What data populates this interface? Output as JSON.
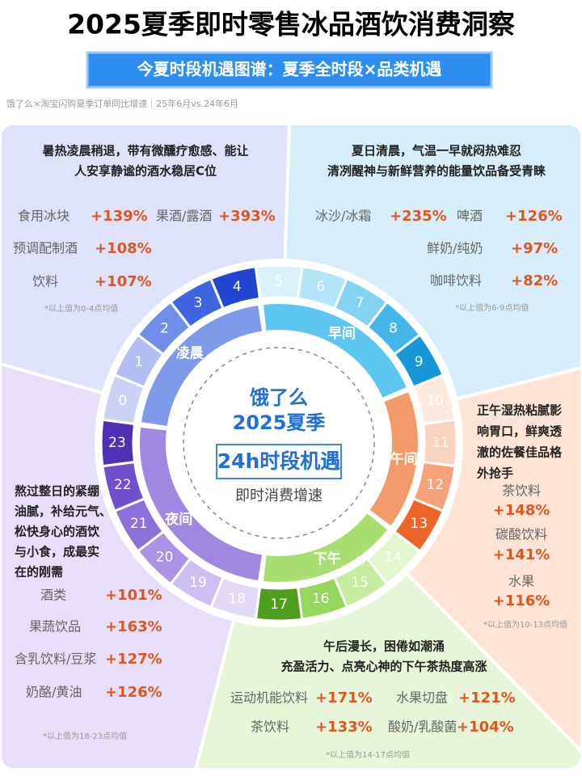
{
  "header": {
    "title": "2025夏季即时零售冰品酒饮消费洞察",
    "subtitle": "今夏时段机遇图谱：夏季全时段×品类机遇",
    "source": "饿了么×淘宝闪购夏季订单同比增速｜25年6月vs.24年6月"
  },
  "center": {
    "brand": "饿了么",
    "season": "2025夏季",
    "headline": "24h时段机遇",
    "caption": "即时消费增速"
  },
  "hours": [
    0,
    1,
    2,
    3,
    4,
    5,
    6,
    7,
    8,
    9,
    10,
    11,
    12,
    13,
    14,
    15,
    16,
    17,
    18,
    19,
    20,
    21,
    22,
    23
  ],
  "periods": [
    {
      "label": "凌晨",
      "desc": [
        "暑热凌晨稍退，带有微醺疗愈感、能让",
        "人安享静谧的酒水稳居C位"
      ],
      "items": [
        {
          "name": "食用冰块",
          "growth": "+139%"
        },
        {
          "name": "果酒/露酒",
          "growth": "+393%"
        },
        {
          "name": "预调配制酒",
          "growth": "+108%"
        },
        {
          "name": "饮料",
          "growth": "+107%"
        }
      ],
      "note": "*以上值为0-4点均值"
    },
    {
      "label": "早间",
      "desc": [
        "夏日清晨，气温一早就闷热难忍",
        "清冽醒神与新鲜营养的能量饮品备受青睐"
      ],
      "items": [
        {
          "name": "冰沙/冰霜",
          "growth": "+235%"
        },
        {
          "name": "啤酒",
          "growth": "+126%"
        },
        {
          "name": "鲜奶/纯奶",
          "growth": "+97%"
        },
        {
          "name": "咖啡饮料",
          "growth": "+82%"
        }
      ],
      "note": "*以上值为6-9点均值"
    },
    {
      "label": "午间",
      "desc": [
        "正午湿热粘腻影",
        "响胃口，鲜爽透",
        "澈的佐餐佳品格",
        "外抢手"
      ],
      "items": [
        {
          "name": "茶饮料",
          "growth": "+148%"
        },
        {
          "name": "碳酸饮料",
          "growth": "+141%"
        },
        {
          "name": "水果",
          "growth": "+116%"
        }
      ],
      "note": "*以上值为10-13点均值"
    },
    {
      "label": "下午",
      "desc": [
        "午后漫长，困倦如潮涌",
        "充盈活力、点亮心神的下午茶热度高涨"
      ],
      "items": [
        {
          "name": "运动机能饮料",
          "growth": "+171%"
        },
        {
          "name": "水果切盘",
          "growth": "+121%"
        },
        {
          "name": "茶饮料",
          "growth": "+133%"
        },
        {
          "name": "酸奶/乳酸菌",
          "growth": "+104%"
        }
      ],
      "note": "*以上值为14-17点均值"
    },
    {
      "label": "夜间",
      "desc": [
        "熬过整日的紧绷",
        "油腻，补给元气、",
        "松快身心的酒饮",
        "与小食，成最实",
        "在的刚需"
      ],
      "items": [
        {
          "name": "酒类",
          "growth": "+101%"
        },
        {
          "name": "果蔬饮品",
          "growth": "+163%"
        },
        {
          "name": "含乳饮料/豆浆",
          "growth": "+127%"
        },
        {
          "name": "奶酪/黄油",
          "growth": "+126%"
        }
      ],
      "note": "*以上值为18-23点均值"
    }
  ]
}
